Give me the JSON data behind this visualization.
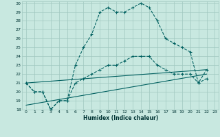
{
  "title": "",
  "xlabel": "Humidex (Indice chaleur)",
  "bg_color": "#c8e8e0",
  "line_color": "#006060",
  "grid_color": "#a0c8c0",
  "xlim": [
    -0.5,
    23.5
  ],
  "ylim": [
    18,
    30.2
  ],
  "xticks": [
    0,
    1,
    2,
    3,
    4,
    5,
    6,
    7,
    8,
    9,
    10,
    11,
    12,
    13,
    14,
    15,
    16,
    17,
    18,
    19,
    20,
    21,
    22,
    23
  ],
  "yticks": [
    18,
    19,
    20,
    21,
    22,
    23,
    24,
    25,
    26,
    27,
    28,
    29,
    30
  ],
  "line1_x": [
    0,
    1,
    2,
    3,
    4,
    5,
    6,
    7,
    8,
    9,
    10,
    11,
    12,
    13,
    14,
    15,
    16,
    17,
    18,
    19,
    20,
    21,
    22
  ],
  "line1_y": [
    21,
    20,
    20,
    18,
    19,
    19,
    23,
    25,
    26.5,
    29,
    29.5,
    29,
    29,
    29.5,
    30,
    29.5,
    28,
    26,
    25.5,
    25,
    24.5,
    21,
    22.5
  ],
  "line2_x": [
    0,
    1,
    2,
    3,
    4,
    5,
    6,
    7,
    8,
    9,
    10,
    11,
    12,
    13,
    14,
    15,
    16,
    17,
    18,
    19,
    20,
    21,
    22
  ],
  "line2_y": [
    21,
    20,
    20,
    18,
    19,
    19,
    21,
    21.5,
    22,
    22.5,
    23,
    23,
    23.5,
    24,
    24,
    24,
    23,
    22.5,
    22,
    22,
    22,
    21,
    21.5
  ],
  "line3_x": [
    0,
    22
  ],
  "line3_y": [
    21,
    22.5
  ],
  "line4_x": [
    0,
    22
  ],
  "line4_y": [
    18.5,
    22
  ]
}
